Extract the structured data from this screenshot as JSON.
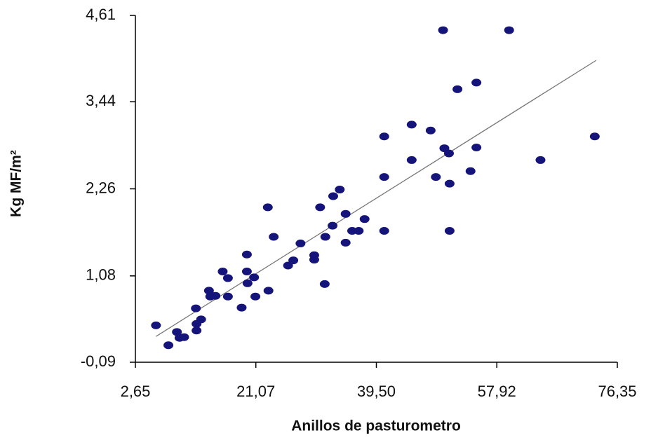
{
  "chart_data": {
    "type": "scatter",
    "xlabel": "Anillos de pasturometro",
    "ylabel": "Kg MF/m²",
    "xlim": [
      2.65,
      76.35
    ],
    "xticks": [
      {
        "value": 2.65,
        "label": "2,65"
      },
      {
        "value": 21.07,
        "label": "21,07"
      },
      {
        "value": 39.5,
        "label": "39,50"
      },
      {
        "value": 57.92,
        "label": "57,92"
      },
      {
        "value": 76.35,
        "label": "76,35"
      }
    ],
    "ylim": [
      -0.09,
      4.61
    ],
    "yticks": [
      {
        "value": -0.09,
        "label": "-0,09"
      },
      {
        "value": 1.08,
        "label": "1,08"
      },
      {
        "value": 2.26,
        "label": "2,26"
      },
      {
        "value": 3.44,
        "label": "3,44"
      },
      {
        "value": 4.61,
        "label": "4,61"
      }
    ],
    "color": "#14147a",
    "x": [
      5.8,
      7.7,
      9.0,
      9.4,
      10.1,
      11.9,
      12.0,
      12.0,
      12.7,
      13.9,
      14.1,
      14.9,
      16.0,
      16.8,
      16.8,
      18.9,
      19.7,
      19.7,
      19.8,
      20.8,
      21.0,
      22.9,
      23.0,
      23.8,
      26.0,
      26.8,
      27.9,
      30.0,
      30.0,
      30.9,
      31.6,
      31.7,
      32.8,
      32.9,
      33.9,
      34.8,
      34.8,
      35.8,
      36.8,
      37.7,
      40.7,
      40.7,
      40.7,
      44.9,
      44.9,
      47.8,
      48.6,
      49.7,
      49.9,
      50.6,
      50.7,
      50.7,
      51.9,
      53.9,
      54.8,
      54.8,
      59.8,
      64.6,
      72.9
    ],
    "y": [
      0.41,
      0.14,
      0.32,
      0.24,
      0.25,
      0.64,
      0.43,
      0.34,
      0.49,
      0.88,
      0.8,
      0.81,
      1.14,
      1.05,
      0.8,
      0.65,
      1.37,
      1.14,
      0.98,
      1.06,
      0.8,
      2.01,
      0.88,
      1.61,
      1.22,
      1.29,
      1.52,
      1.36,
      1.3,
      2.01,
      0.97,
      1.61,
      1.76,
      2.16,
      2.25,
      1.53,
      1.92,
      1.69,
      1.69,
      1.85,
      2.97,
      2.42,
      1.69,
      3.13,
      2.65,
      3.05,
      2.42,
      4.41,
      2.81,
      2.74,
      2.33,
      1.69,
      3.61,
      2.5,
      3.7,
      2.82,
      4.41,
      2.65,
      2.97
    ],
    "trendline": {
      "color": "#777777",
      "x": [
        5.8,
        73.1
      ],
      "y": [
        0.26,
        4.0
      ]
    }
  }
}
